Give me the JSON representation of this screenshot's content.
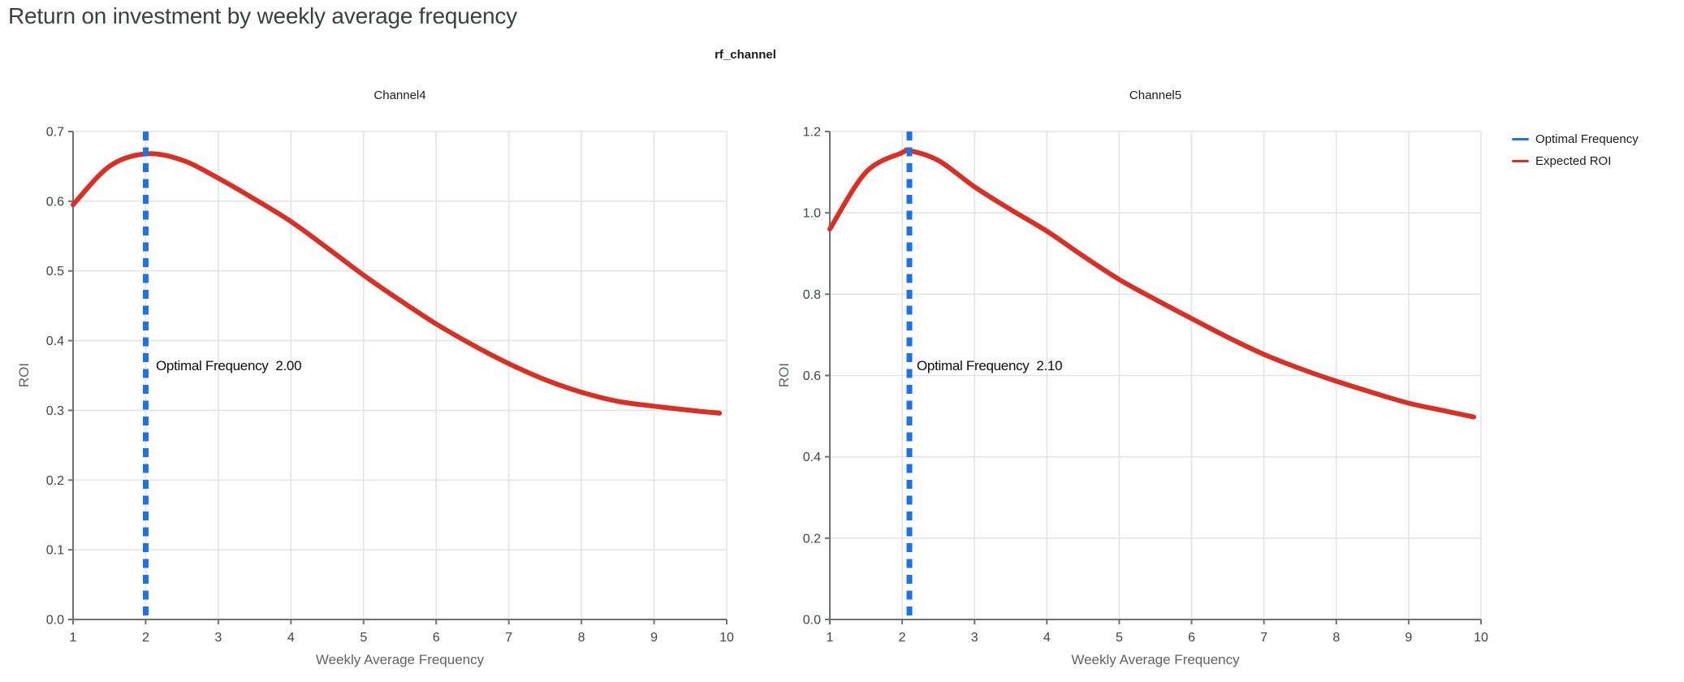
{
  "page_title": "Return on investment by weekly average frequency",
  "facet_title": "rf_channel",
  "colors": {
    "optimal_frequency_blue": "#1A73E8",
    "expected_roi_red": "#D93025",
    "grid": "#E4E4E4",
    "axis_domain": "#6E7276",
    "tick_label": "#3F4449",
    "axis_title": "#5F6368",
    "page_title": "#3C4043"
  },
  "legend": {
    "items": [
      {
        "label": "Optimal Frequency",
        "color": "#1A73E8"
      },
      {
        "label": "Expected ROI",
        "color": "#D93025"
      }
    ]
  },
  "chart_data": [
    {
      "type": "line",
      "title": "Channel4",
      "xlabel": "Weekly Average Frequency",
      "ylabel": "ROI",
      "xlim": [
        1,
        10
      ],
      "ylim": [
        0,
        0.7
      ],
      "x_tick_labels": [
        "1",
        "2",
        "3",
        "4",
        "5",
        "6",
        "7",
        "8",
        "9",
        "10"
      ],
      "x_tick_values": [
        1,
        2,
        3,
        4,
        5,
        6,
        7,
        8,
        9,
        10
      ],
      "y_tick_labels": [
        "0.0",
        "0.1",
        "0.2",
        "0.3",
        "0.4",
        "0.5",
        "0.6",
        "0.7"
      ],
      "y_tick_values": [
        0.0,
        0.1,
        0.2,
        0.3,
        0.4,
        0.5,
        0.6,
        0.7
      ],
      "grid": true,
      "optimal_frequency": 2.0,
      "annotation": "Optimal Frequency  2.00",
      "rule": {
        "name": "Optimal Frequency",
        "x": 2.0,
        "color": "#1A73E8",
        "style": "dashed"
      },
      "series": [
        {
          "name": "Expected ROI",
          "color": "#D93025",
          "x": [
            1,
            1.5,
            2,
            2.5,
            3,
            3.5,
            4,
            4.5,
            5,
            5.5,
            6,
            6.5,
            7,
            7.5,
            8,
            8.5,
            9,
            9.5,
            9.9
          ],
          "y": [
            0.595,
            0.65,
            0.668,
            0.659,
            0.633,
            0.603,
            0.571,
            0.533,
            0.494,
            0.458,
            0.424,
            0.394,
            0.367,
            0.344,
            0.326,
            0.313,
            0.306,
            0.3,
            0.296
          ]
        }
      ]
    },
    {
      "type": "line",
      "title": "Channel5",
      "xlabel": "Weekly Average Frequency",
      "ylabel": "ROI",
      "xlim": [
        1,
        10
      ],
      "ylim": [
        0,
        1.2
      ],
      "x_tick_labels": [
        "1",
        "2",
        "3",
        "4",
        "5",
        "6",
        "7",
        "8",
        "9",
        "10"
      ],
      "x_tick_values": [
        1,
        2,
        3,
        4,
        5,
        6,
        7,
        8,
        9,
        10
      ],
      "y_tick_labels": [
        "0.0",
        "0.2",
        "0.4",
        "0.6",
        "0.8",
        "1.0",
        "1.2"
      ],
      "y_tick_values": [
        0.0,
        0.2,
        0.4,
        0.6,
        0.8,
        1.0,
        1.2
      ],
      "grid": true,
      "optimal_frequency": 2.1,
      "annotation": "Optimal Frequency  2.10",
      "rule": {
        "name": "Optimal Frequency",
        "x": 2.1,
        "color": "#1A73E8",
        "style": "dashed"
      },
      "series": [
        {
          "name": "Expected ROI",
          "color": "#D93025",
          "x": [
            1,
            1.5,
            2,
            2.1,
            2.5,
            3,
            3.5,
            4,
            4.5,
            5,
            5.5,
            6,
            6.5,
            7,
            7.5,
            8,
            8.5,
            9,
            9.5,
            9.9
          ],
          "y": [
            0.96,
            1.1,
            1.148,
            1.153,
            1.129,
            1.064,
            1.008,
            0.955,
            0.894,
            0.836,
            0.787,
            0.74,
            0.694,
            0.652,
            0.617,
            0.586,
            0.558,
            0.532,
            0.513,
            0.498
          ]
        }
      ]
    }
  ]
}
